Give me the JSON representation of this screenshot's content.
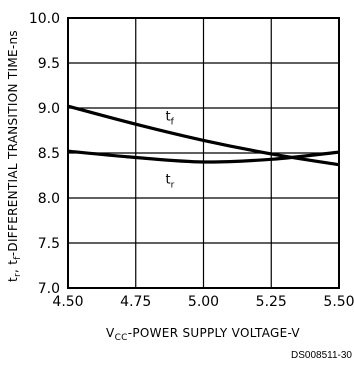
{
  "chart_data": {
    "type": "line",
    "title": "",
    "xlabel": {
      "main": "V",
      "sub": "CC",
      "rest": "-POWER SUPPLY VOLTAGE-V"
    },
    "ylabel": {
      "t1": "t",
      "s1": "r",
      "sep": ", ",
      "t2": "t",
      "s2": "f",
      "rest": "-DIFFERENTIAL TRANSITION TIME-ns"
    },
    "xlim": [
      4.5,
      5.5
    ],
    "ylim": [
      7.0,
      10.0
    ],
    "x_ticks": [
      "4.50",
      "4.75",
      "5.00",
      "5.25",
      "5.50"
    ],
    "y_ticks": [
      "7.0",
      "7.5",
      "8.0",
      "8.5",
      "9.0",
      "9.5",
      "10.0"
    ],
    "grid": true,
    "series": [
      {
        "name": {
          "main": "t",
          "sub": "f"
        },
        "x": [
          4.5,
          4.75,
          5.0,
          5.25,
          5.5
        ],
        "y": [
          9.02,
          8.82,
          8.64,
          8.49,
          8.37
        ]
      },
      {
        "name": {
          "main": "t",
          "sub": "r"
        },
        "x": [
          4.5,
          4.75,
          5.0,
          5.25,
          5.5
        ],
        "y": [
          8.52,
          8.45,
          8.4,
          8.43,
          8.51
        ]
      }
    ]
  },
  "figure_id": "DS008511-30"
}
